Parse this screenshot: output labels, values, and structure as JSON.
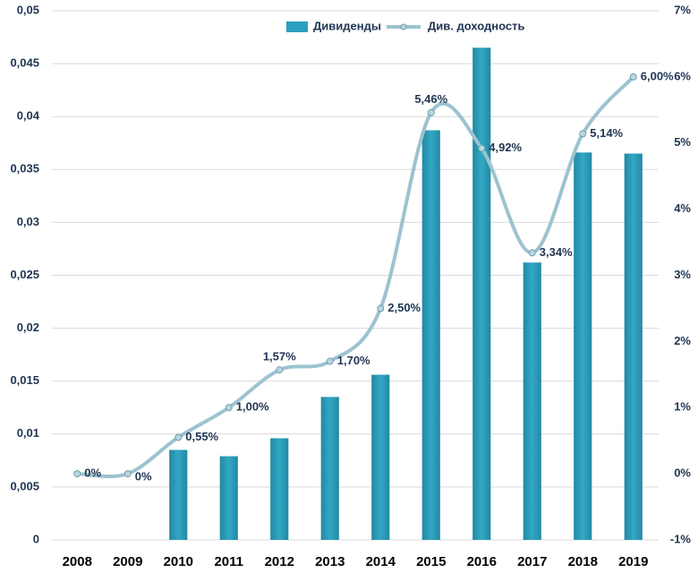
{
  "chart_data": {
    "type": "bar",
    "categories": [
      "2008",
      "2009",
      "2010",
      "2011",
      "2012",
      "2013",
      "2014",
      "2015",
      "2016",
      "2017",
      "2018",
      "2019"
    ],
    "series": [
      {
        "name": "Дивиденды",
        "type": "bar",
        "color": "#2b9fbd",
        "values": [
          0,
          0,
          0.0085,
          0.0079,
          0.0096,
          0.0135,
          0.0156,
          0.0387,
          0.0465,
          0.0262,
          0.0366,
          0.0365
        ]
      },
      {
        "name": "Див. доходность",
        "type": "line",
        "axis": "y2",
        "color": "#9cc3d0",
        "values": [
          0,
          0,
          0.55,
          1.0,
          1.57,
          1.7,
          2.5,
          5.46,
          4.92,
          3.34,
          5.14,
          6.0
        ],
        "value_labels": [
          "0%",
          "0%",
          "0,55%",
          "1,00%",
          "1,57%",
          "1,70%",
          "2,50%",
          "5,46%",
          "4,92%",
          "3,34%",
          "5,14%",
          "6,00%"
        ]
      }
    ],
    "ylim": [
      0,
      0.05
    ],
    "yticks": [
      0,
      {
        "value": 0.005,
        "label": "0,005"
      },
      {
        "value": 0.01,
        "label": "0,01"
      },
      {
        "value": 0.015,
        "label": "0,015"
      },
      {
        "value": 0.02,
        "label": "0,02"
      },
      {
        "value": 0.025,
        "label": "0,025"
      },
      {
        "value": 0.03,
        "label": "0,03"
      },
      {
        "value": 0.035,
        "label": "0,035"
      },
      {
        "value": 0.04,
        "label": "0,04"
      },
      {
        "value": 0.045,
        "label": "0,045"
      },
      {
        "value": 0.05,
        "label": "0,05"
      }
    ],
    "y2lim": [
      -1,
      7
    ],
    "y2ticks": [
      {
        "value": -1,
        "label": "-1%"
      },
      {
        "value": 0,
        "label": "0%"
      },
      {
        "value": 1,
        "label": "1%"
      },
      {
        "value": 2,
        "label": "2%"
      },
      {
        "value": 3,
        "label": "3%"
      },
      {
        "value": 4,
        "label": "4%"
      },
      {
        "value": 5,
        "label": "5%"
      },
      {
        "value": 6,
        "label": "6%"
      },
      {
        "value": 7,
        "label": "7%"
      }
    ],
    "grid": true,
    "legend": "top"
  }
}
